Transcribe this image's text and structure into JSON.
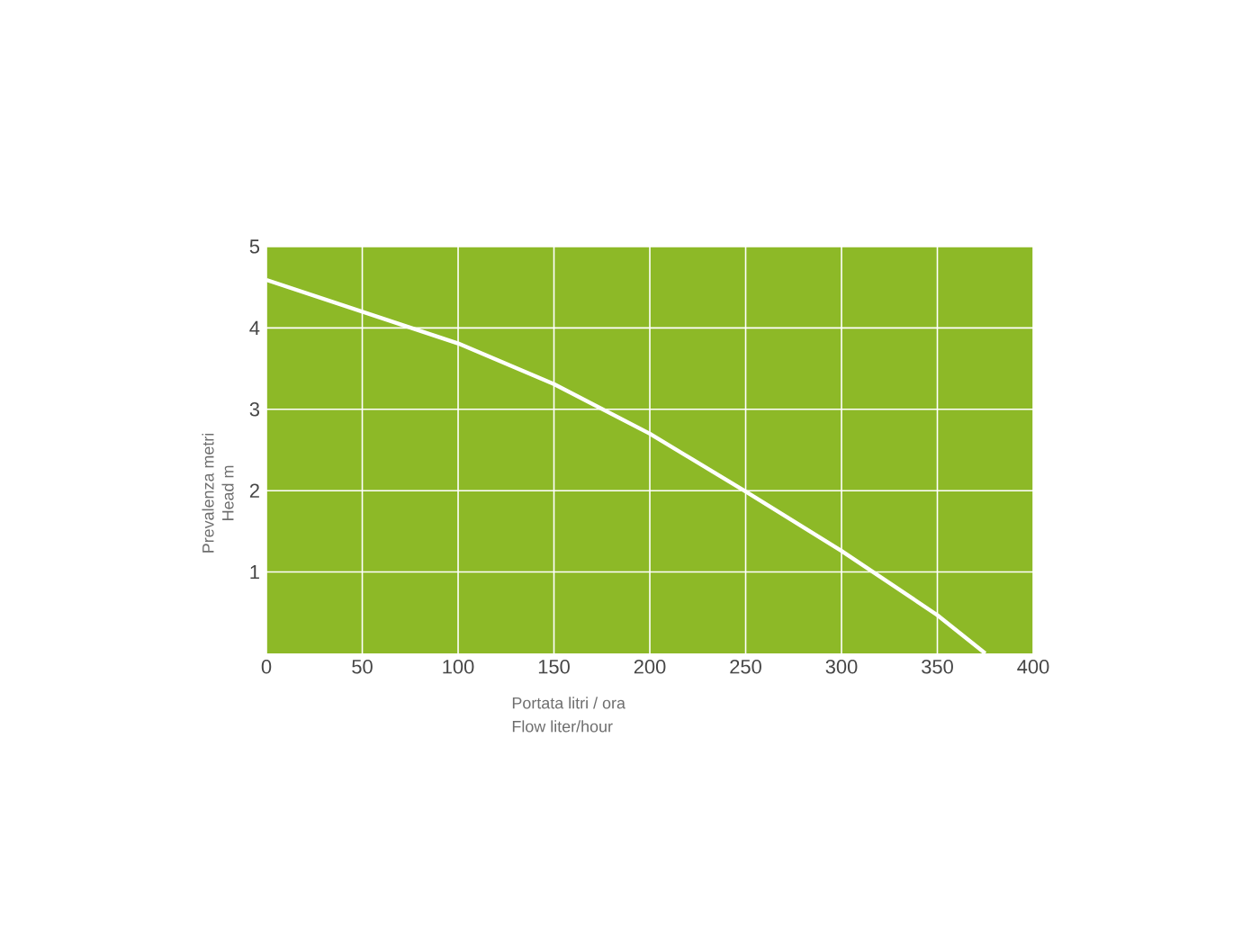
{
  "chart_data": {
    "type": "line",
    "xlabel": "Portata  litri / ora",
    "ylabel": "Prevalenza metri",
    "annotations": [
      "Flow liter/hour",
      "Head  m"
    ],
    "x": [
      0,
      50,
      100,
      150,
      200,
      250,
      300,
      350,
      375
    ],
    "values": [
      4.59,
      4.2,
      3.81,
      3.31,
      2.7,
      1.99,
      1.26,
      0.47,
      0
    ],
    "color": "#ffffff",
    "xlim": [
      0,
      400
    ],
    "ylim": [
      0,
      5
    ],
    "xticks": [
      0,
      50,
      100,
      150,
      200,
      250,
      300,
      350,
      400
    ],
    "yticks": [
      1,
      2,
      3,
      4,
      5
    ],
    "grid": true
  }
}
